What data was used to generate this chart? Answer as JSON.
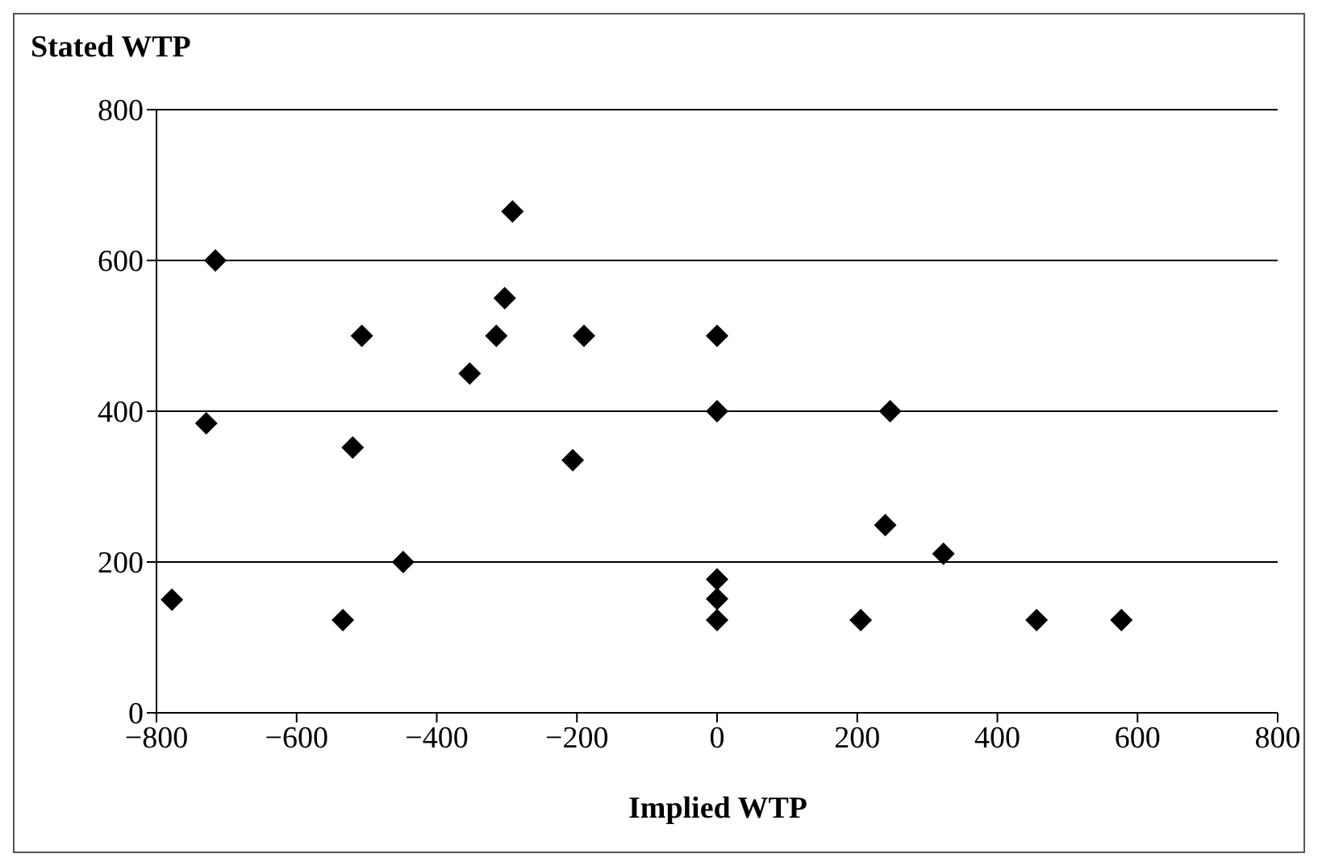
{
  "chart_data": {
    "type": "scatter",
    "title": "Stated WTP",
    "xlabel": "Implied WTP",
    "xlim": [
      -800,
      800
    ],
    "xticks": [
      -800,
      -600,
      -400,
      -200,
      0,
      200,
      400,
      600,
      800
    ],
    "ylim": [
      0,
      800
    ],
    "yticks": [
      0,
      200,
      400,
      600,
      800
    ],
    "grid": "y",
    "marker": "diamond",
    "legend": false,
    "series": [
      {
        "color": "#000000",
        "x": [
          -778,
          -716,
          -729,
          -534,
          -507,
          -520,
          -448,
          -353,
          -315,
          -303,
          -292,
          -190,
          -206,
          0,
          0,
          0,
          0,
          0,
          205,
          247,
          240,
          323,
          456,
          577
        ],
        "values": [
          150,
          600,
          384,
          123,
          500,
          352,
          200,
          450,
          500,
          550,
          665,
          500,
          335,
          500,
          400,
          177,
          151,
          123,
          123,
          400,
          249,
          211,
          123,
          123
        ]
      }
    ]
  }
}
